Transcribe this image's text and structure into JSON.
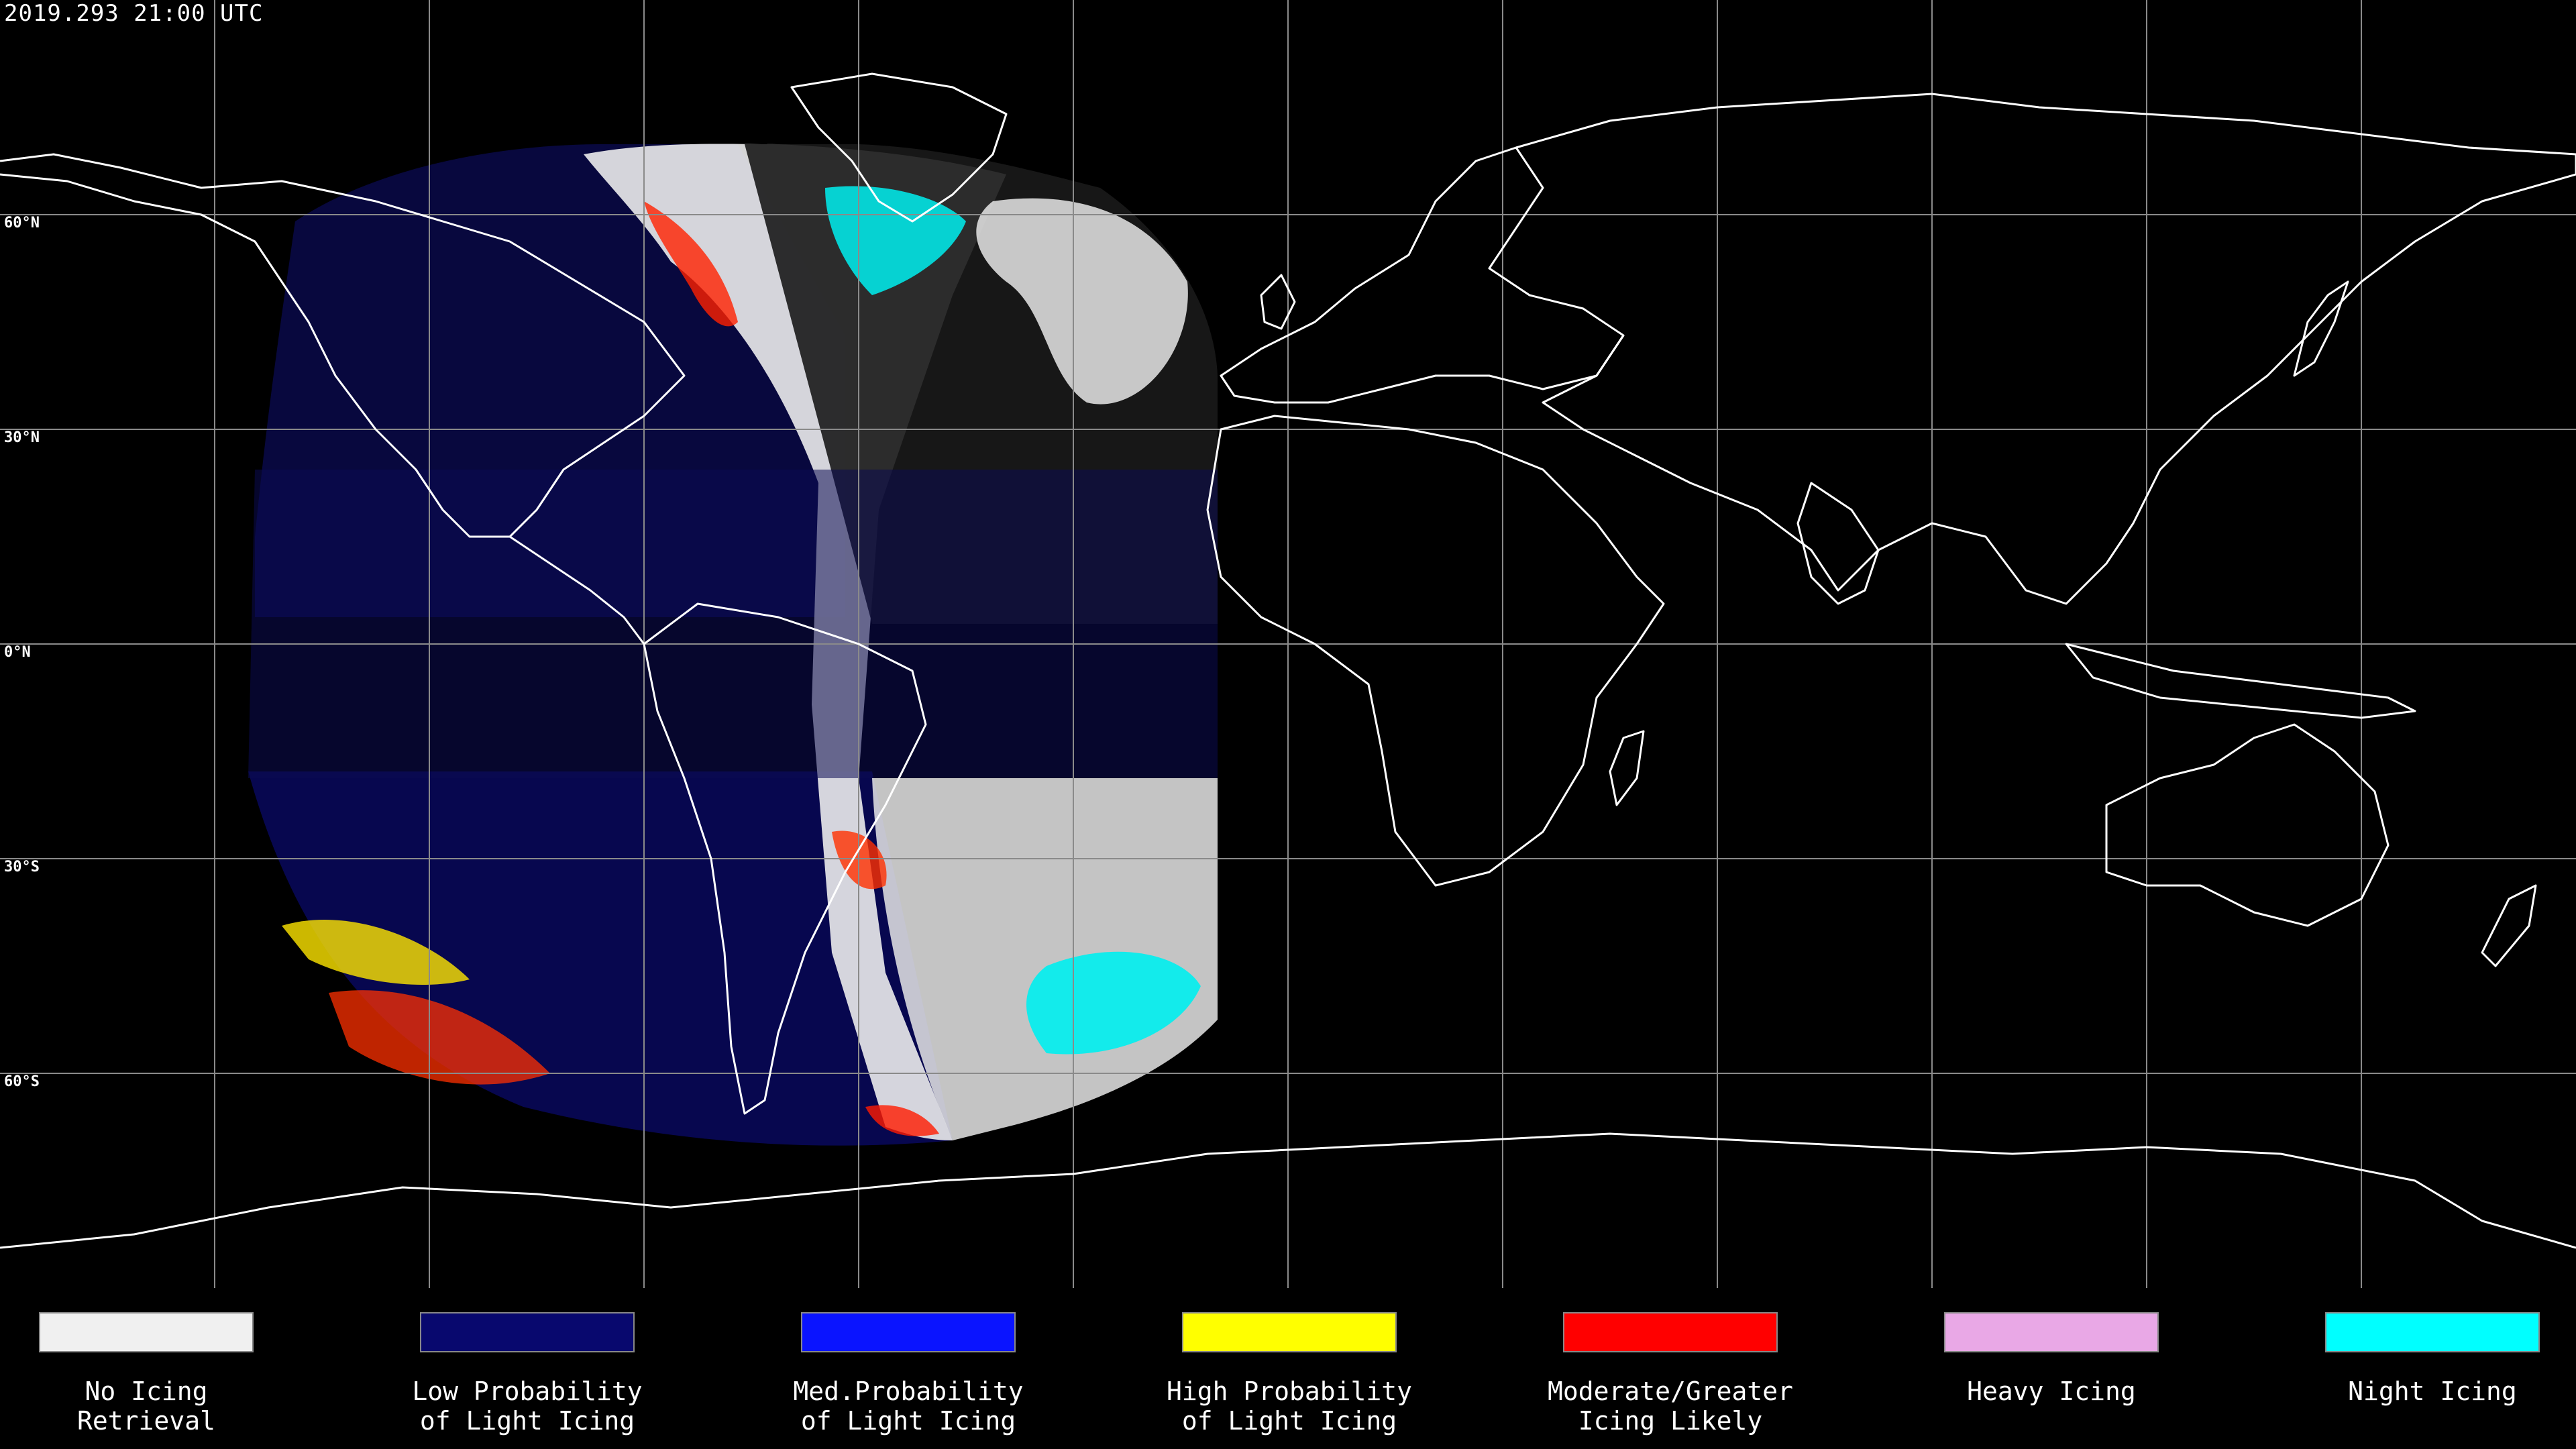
{
  "header": {
    "timestamp": "2019.293 21:00 UTC"
  },
  "latitude_labels": [
    "60°N",
    "30°N",
    "0°N",
    "30°S",
    "60°S"
  ],
  "legend": {
    "items": [
      {
        "line1": "No Icing",
        "line2": "Retrieval",
        "color": "#f0f0f0"
      },
      {
        "line1": "Low Probability",
        "line2": "of Light Icing",
        "color": "#08086e"
      },
      {
        "line1": "Med.Probability",
        "line2": "of Light Icing",
        "color": "#0a14ff"
      },
      {
        "line1": "High Probability",
        "line2": "of Light Icing",
        "color": "#ffff00"
      },
      {
        "line1": "Moderate/Greater",
        "line2": "Icing Likely",
        "color": "#ff0000"
      },
      {
        "line1": "Heavy Icing",
        "line2": "",
        "color": "#e9a8e6"
      },
      {
        "line1": "Night Icing",
        "line2": "",
        "color": "#00ffff"
      }
    ]
  },
  "map": {
    "background_color": "#000000",
    "grid_color": "#8a8a8a",
    "coastline_color": "#ffffff"
  }
}
